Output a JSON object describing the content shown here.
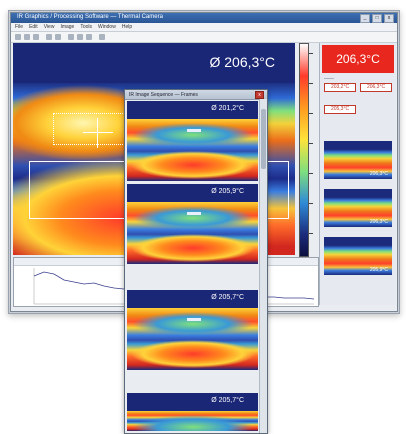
{
  "main_window": {
    "title": "IR Graphics / Processing Software — Thermal Camera",
    "menu": [
      "File",
      "Edit",
      "View",
      "Image",
      "Tools",
      "Window",
      "Help"
    ],
    "average_label": "Ø  206,3°C"
  },
  "right_panel": {
    "temperature": "206,3°C",
    "fields": [
      "203,2°C",
      "206,3°C",
      "205,3°C"
    ],
    "thumbnails": [
      "206,3°C",
      "206,3°C",
      "205,9°C"
    ]
  },
  "popup": {
    "title": "IR Image Sequence — Frames",
    "close": "x",
    "frames": [
      {
        "label": "Ø  201,2°C"
      },
      {
        "label": "Ø  205,9°C"
      },
      {
        "label": "Ø  205,7°C"
      },
      {
        "label": "Ø  205,7°C"
      }
    ]
  },
  "graph": {
    "series_color": "#3a3f8f"
  },
  "colors": {
    "accent_red": "#e8281e",
    "thermal_navy": "#1a2676"
  }
}
